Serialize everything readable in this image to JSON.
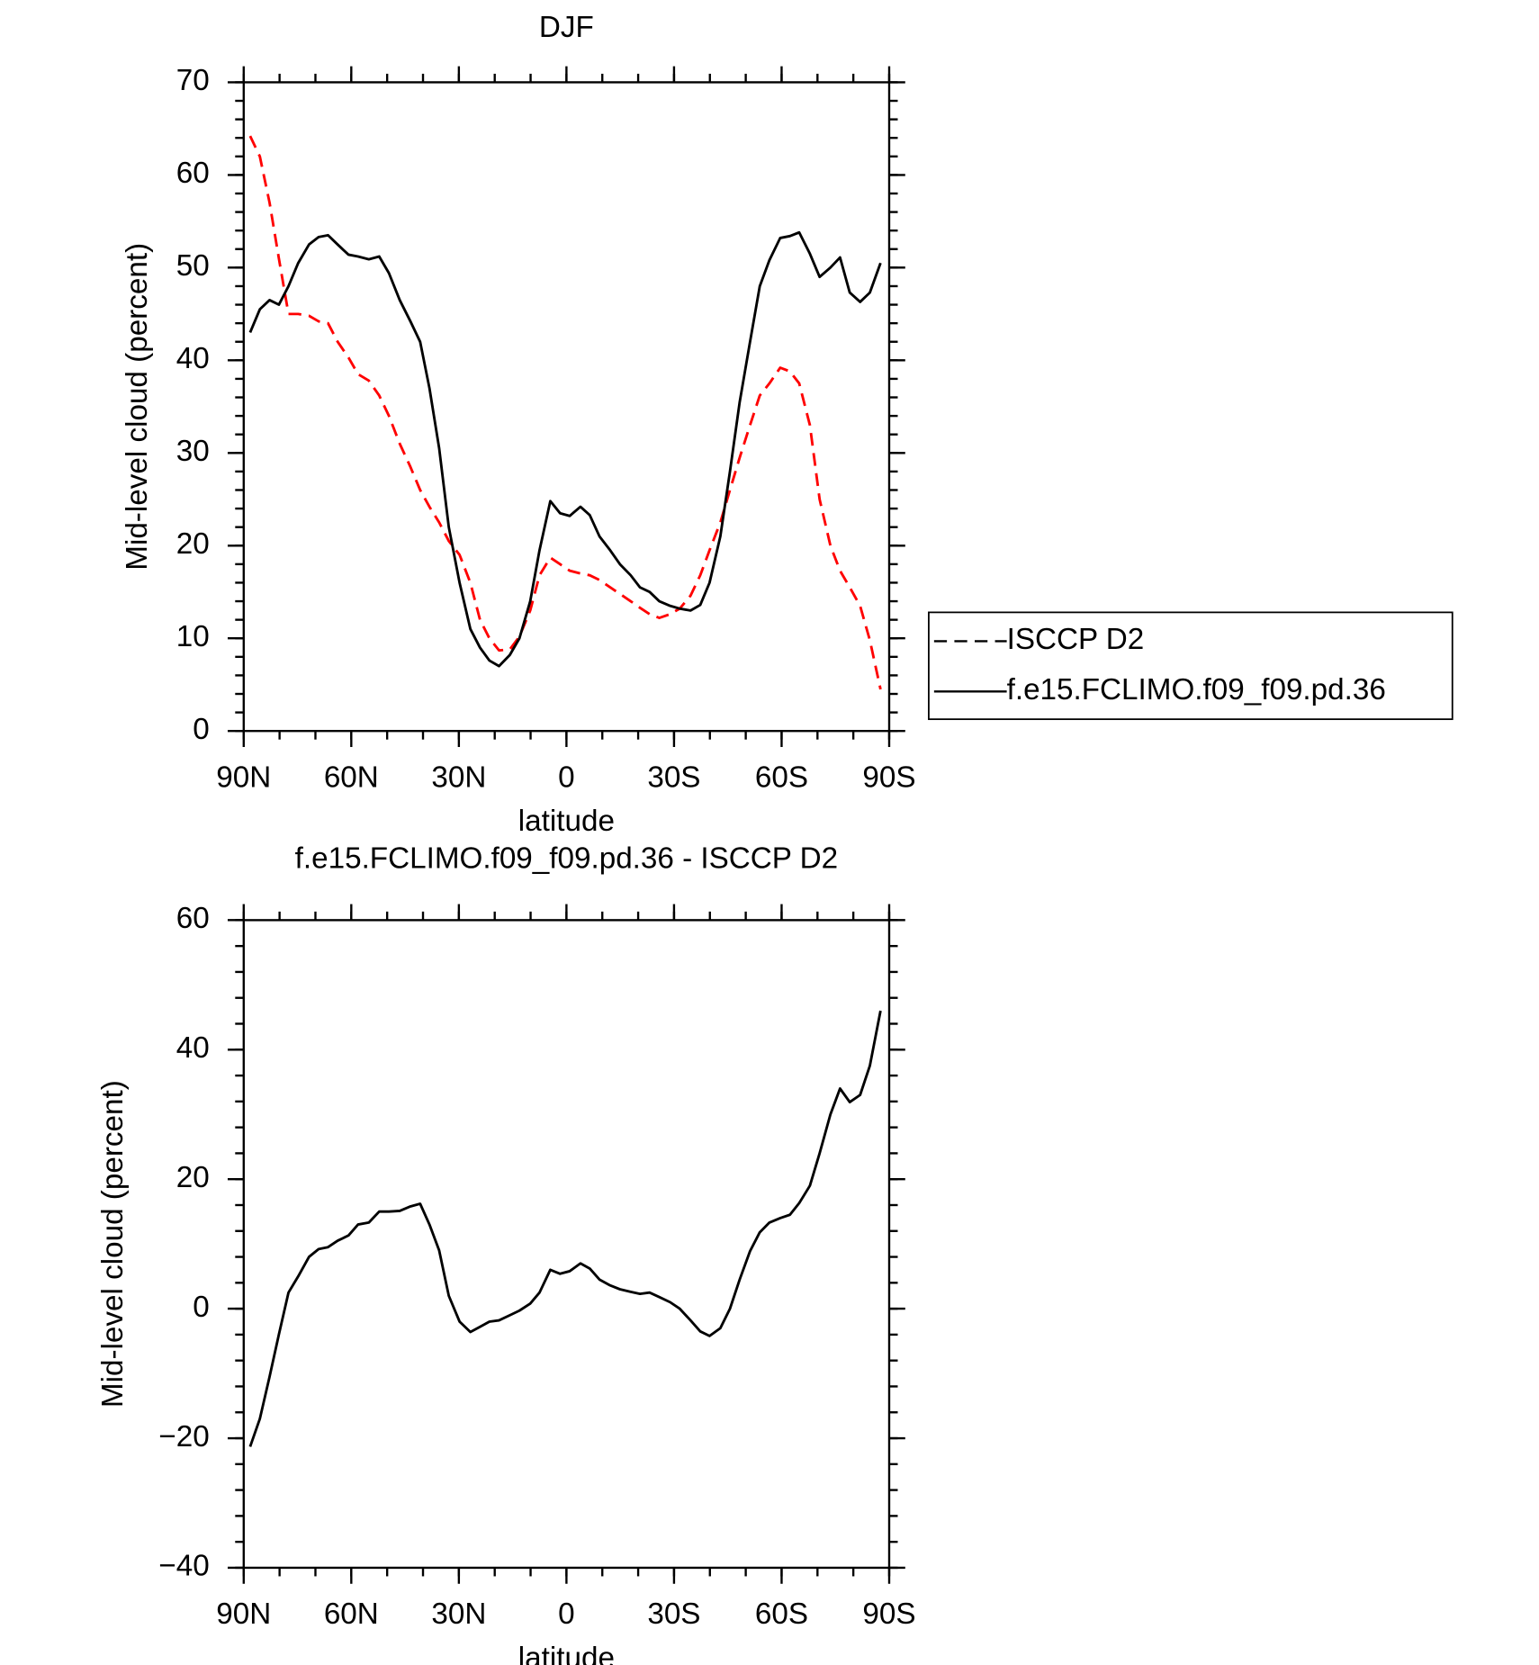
{
  "chart_data": [
    {
      "type": "line",
      "title": "DJF",
      "xlabel": "latitude",
      "ylabel": "Mid-level cloud (percent)",
      "x": [
        88.2,
        85.5,
        82.8,
        80.2,
        77.5,
        74.8,
        71.8,
        69.1,
        66.5,
        63.8,
        60.8,
        58.1,
        55.1,
        52.2,
        49.5,
        46.5,
        43.5,
        40.8,
        38.2,
        35.5,
        32.8,
        29.8,
        26.8,
        24.1,
        21.5,
        18.8,
        15.8,
        13.1,
        10.1,
        7.5,
        4.5,
        1.8,
        -0.9,
        -3.9,
        -6.5,
        -9.2,
        -12.2,
        -14.9,
        -17.9,
        -20.5,
        -23.2,
        -25.9,
        -28.9,
        -31.6,
        -34.6,
        -37.3,
        -39.9,
        -42.9,
        -45.6,
        -48.3,
        -51.2,
        -53.9,
        -56.6,
        -59.6,
        -62.3,
        -64.9,
        -67.9,
        -70.6,
        -73.6,
        -76.3,
        -79,
        -81.9,
        -84.6,
        -87.6
      ],
      "series": [
        {
          "name": "ISCCP D2",
          "color": "#ff0000",
          "dash": true,
          "values": [
            64.2,
            62,
            57,
            51,
            45,
            45,
            44.8,
            44.2,
            44,
            42,
            40.3,
            38.5,
            37.8,
            36.2,
            34,
            31,
            28.5,
            26,
            24.2,
            22.5,
            20.5,
            19,
            16,
            12,
            10,
            8.7,
            8.8,
            10.2,
            13,
            16.8,
            18.7,
            18,
            17.3,
            17,
            16.8,
            16.3,
            15.5,
            14.8,
            14,
            13.3,
            12.6,
            12.2,
            12.6,
            13.2,
            14.6,
            16.8,
            19.5,
            22.5,
            26,
            29.5,
            33,
            36.2,
            37.5,
            39.2,
            38.8,
            37.5,
            33,
            25,
            20,
            17.3,
            15.5,
            13.5,
            9.8,
            4.5
          ]
        },
        {
          "name": "f.e15.FCLIMO.f09_f09.pd.36",
          "color": "#000000",
          "dash": false,
          "values": [
            43,
            45.5,
            46.5,
            46,
            48,
            50.5,
            52.5,
            53.3,
            53.5,
            52.5,
            51.4,
            51.2,
            50.9,
            51.2,
            49.4,
            46.5,
            44.2,
            42,
            37,
            30.5,
            22,
            16,
            11,
            9,
            7.6,
            7,
            8.2,
            10,
            14,
            19.5,
            24.8,
            23.5,
            23.2,
            24.2,
            23.3,
            21,
            19.5,
            18,
            16.8,
            15.5,
            15,
            14,
            13.5,
            13.2,
            13,
            13.6,
            16,
            21,
            28,
            35.5,
            42,
            48,
            50.8,
            53.2,
            53.4,
            53.8,
            51.5,
            49,
            50,
            51.1,
            47.3,
            46.3,
            47.3,
            50.5
          ]
        }
      ],
      "xlim": [
        90,
        -90
      ],
      "xticks": [
        {
          "value": 90,
          "label": "90N"
        },
        {
          "value": 60,
          "label": "60N"
        },
        {
          "value": 30,
          "label": "30N"
        },
        0,
        {
          "value": -30,
          "label": "30S"
        },
        {
          "value": -60,
          "label": "60S"
        },
        {
          "value": -90,
          "label": "90S"
        }
      ],
      "ylim": [
        0,
        70
      ],
      "yticks": [
        0,
        10,
        20,
        30,
        40,
        50,
        60,
        70
      ],
      "minor_xstep": 10,
      "minor_ystep": 2,
      "legend": "right"
    },
    {
      "type": "line",
      "title": "f.e15.FCLIMO.f09_f09.pd.36 - ISCCP D2",
      "xlabel": "latitude",
      "ylabel": "Mid-level cloud (percent)",
      "x": [
        88.2,
        85.5,
        82.8,
        80.2,
        77.5,
        74.8,
        71.8,
        69.1,
        66.5,
        63.8,
        60.8,
        58.1,
        55.1,
        52.2,
        49.5,
        46.5,
        43.5,
        40.8,
        38.2,
        35.5,
        32.8,
        29.8,
        26.8,
        24.1,
        21.5,
        18.8,
        15.8,
        13.1,
        10.1,
        7.5,
        4.5,
        1.8,
        -0.9,
        -3.9,
        -6.5,
        -9.2,
        -12.2,
        -14.9,
        -17.9,
        -20.5,
        -23.2,
        -25.9,
        -28.9,
        -31.6,
        -34.6,
        -37.3,
        -39.9,
        -42.9,
        -45.6,
        -48.3,
        -51.2,
        -53.9,
        -56.6,
        -59.6,
        -62.3,
        -64.9,
        -67.9,
        -70.6,
        -73.6,
        -76.3,
        -79,
        -81.9,
        -84.6,
        -87.6
      ],
      "series": [
        {
          "color": "#000000",
          "dash": false,
          "values": [
            -21.3,
            -17,
            -10.5,
            -4,
            2.5,
            5,
            8,
            9.2,
            9.5,
            10.5,
            11.3,
            13,
            13.3,
            15,
            15,
            15.1,
            15.8,
            16.2,
            13,
            9,
            2,
            -2,
            -3.6,
            -2.8,
            -2,
            -1.8,
            -1,
            -0.3,
            0.8,
            2.5,
            6,
            5.4,
            5.8,
            7,
            6.2,
            4.5,
            3.6,
            3,
            2.6,
            2.3,
            2.5,
            1.8,
            1,
            0,
            -1.8,
            -3.5,
            -4.2,
            -3,
            0,
            4.5,
            8.9,
            11.8,
            13.3,
            14,
            14.5,
            16.3,
            19,
            24,
            30,
            34,
            31.9,
            33,
            37.5,
            46
          ]
        }
      ],
      "xlim": [
        90,
        -90
      ],
      "xticks": [
        {
          "value": 90,
          "label": "90N"
        },
        {
          "value": 60,
          "label": "60N"
        },
        {
          "value": 30,
          "label": "30N"
        },
        0,
        {
          "value": -30,
          "label": "30S"
        },
        {
          "value": -60,
          "label": "60S"
        },
        {
          "value": -90,
          "label": "90S"
        }
      ],
      "ylim": [
        -40,
        60
      ],
      "yticks": [
        {
          "value": -40,
          "label": "−40"
        },
        {
          "value": -20,
          "label": "−20"
        },
        0,
        20,
        40,
        60
      ],
      "minor_xstep": 10,
      "minor_ystep": 4
    }
  ]
}
